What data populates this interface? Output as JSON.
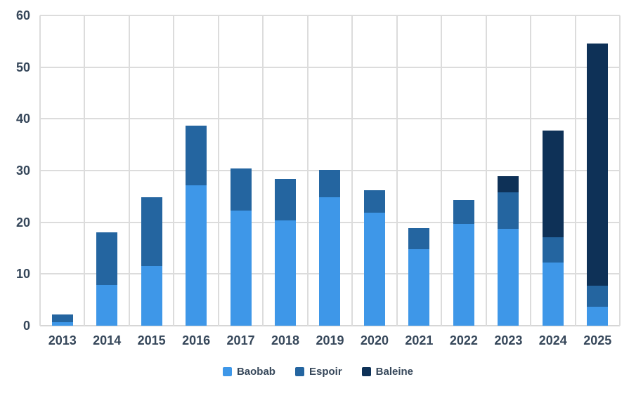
{
  "chart_data": {
    "type": "bar",
    "stacked": true,
    "title": "",
    "xlabel": "",
    "ylabel": "",
    "categories": [
      "2013",
      "2014",
      "2015",
      "2016",
      "2017",
      "2018",
      "2019",
      "2020",
      "2021",
      "2022",
      "2023",
      "2024",
      "2025"
    ],
    "series": [
      {
        "name": "Baobab",
        "color": "#3e97e8",
        "values": [
          0.7,
          7.9,
          11.5,
          27.1,
          22.3,
          20.3,
          24.8,
          21.8,
          14.8,
          19.7,
          18.8,
          12.2,
          3.7
        ]
      },
      {
        "name": "Espoir",
        "color": "#2465a0",
        "values": [
          1.5,
          10.1,
          13.3,
          11.6,
          8.1,
          8.1,
          5.3,
          4.4,
          4.1,
          4.6,
          7.0,
          4.9,
          4.1
        ]
      },
      {
        "name": "Baleine",
        "color": "#0e3157",
        "values": [
          0,
          0,
          0,
          0,
          0,
          0,
          0,
          0,
          0,
          0,
          3.1,
          20.6,
          46.8
        ]
      }
    ],
    "stack_totals": [
      2.2,
      18.0,
      24.8,
      38.7,
      30.4,
      28.4,
      30.1,
      26.2,
      18.9,
      24.3,
      28.9,
      37.7,
      54.6
    ],
    "ylim": [
      0,
      60
    ],
    "yticks": [
      0,
      10,
      20,
      30,
      40,
      50,
      60
    ],
    "grid": true,
    "grid_color": "#dcdcdc",
    "axis_text_color": "#36475a",
    "legend_position": "bottom",
    "legend_entries": [
      "Baobab",
      "Espoir",
      "Baleine"
    ]
  }
}
